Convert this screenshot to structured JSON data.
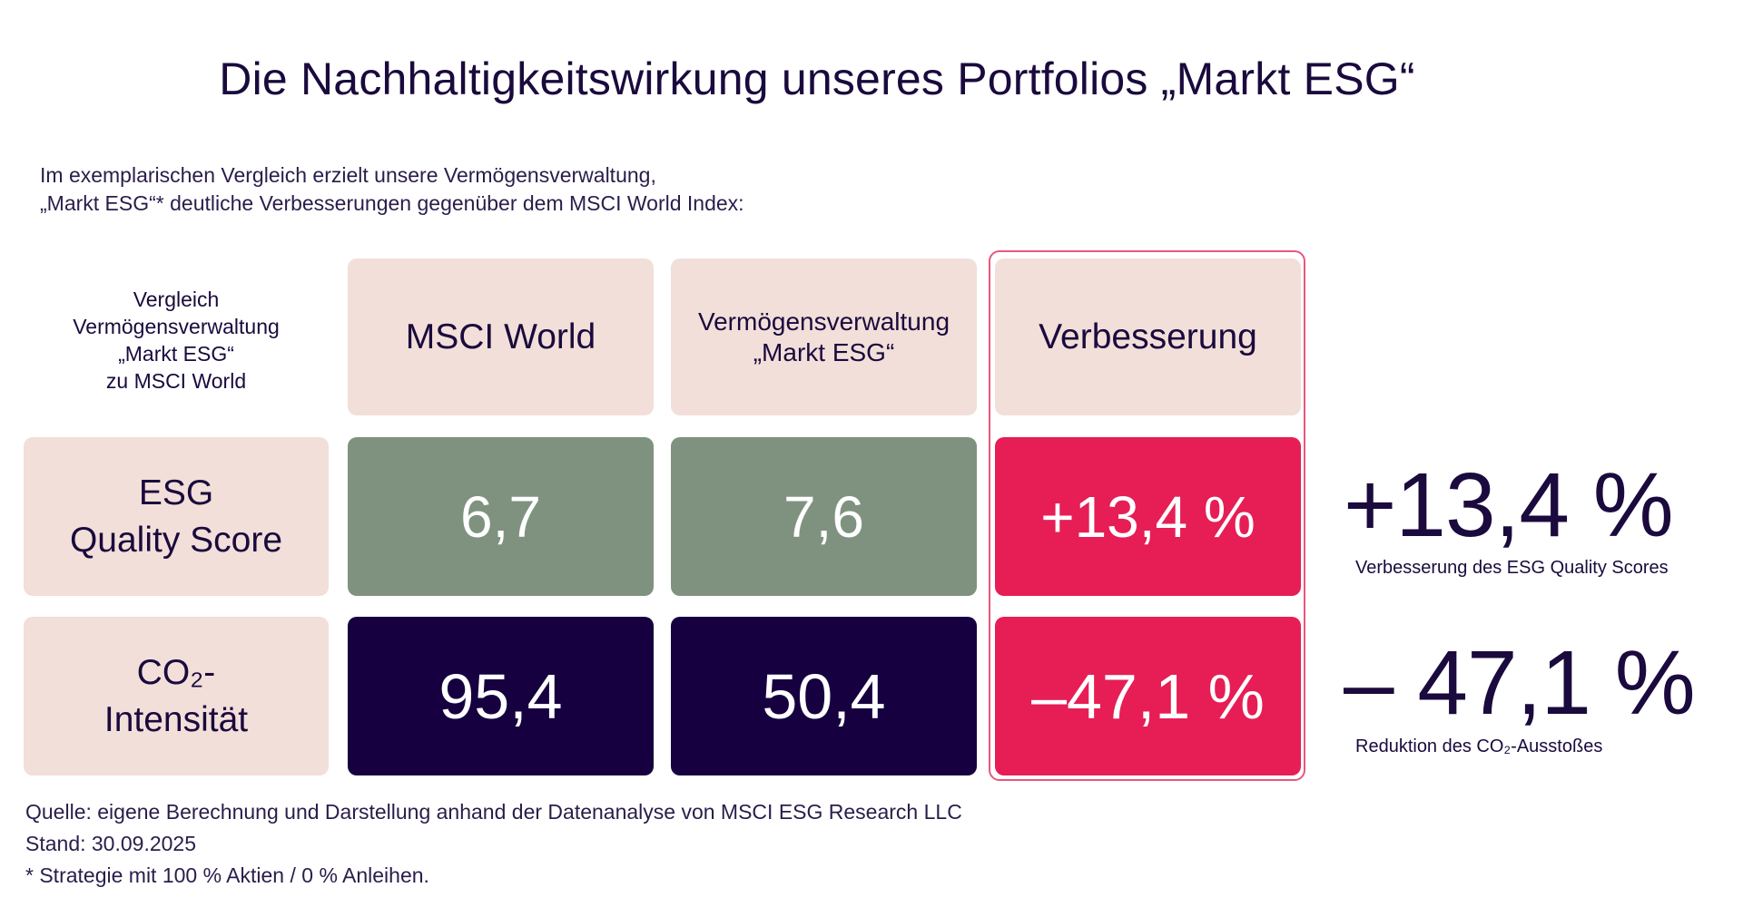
{
  "title": "Die Nachhaltigkeitswirkung unseres Portfolios „Markt ESG“",
  "intro": {
    "line1": "Im exemplarischen Vergleich erzielt unsere Vermögensverwaltung,",
    "line2": "„Markt ESG“* deutliche Verbesserungen gegenüber dem MSCI World Index:"
  },
  "table": {
    "corner_label": [
      "Vergleich",
      "Vermögensverwaltung",
      "„Markt ESG“",
      "zu MSCI  World"
    ],
    "headers": {
      "msci": "MSCI  World",
      "markt_line1": "Vermögensverwaltung",
      "markt_line2": "„Markt ESG“",
      "improvement": "Verbesserung"
    },
    "rows": [
      {
        "label_line1": "ESG",
        "label_line2": "Quality Score",
        "msci": "6,7",
        "markt": "7,6",
        "improvement": "+13,4 %"
      },
      {
        "label_line1": "CO₂-",
        "label_line2": "Intensität",
        "msci": "95,4",
        "markt": "50,4",
        "improvement": "–47,1 %"
      }
    ]
  },
  "stats": [
    {
      "value": "+13,4 %",
      "caption": "Verbesserung des ESG Quality Scores"
    },
    {
      "value": "– 47,1 %",
      "caption": "Reduktion des CO₂-Ausstoßes"
    }
  ],
  "footer": {
    "source": "Quelle: eigene Berechnung und Darstellung anhand der Datenanalyse von MSCI ESG Research LLC",
    "date": "Stand: 30.09.2025",
    "note": "* Strategie mit 100 % Aktien / 0 % Anleihen."
  },
  "colors": {
    "navy": "#160040",
    "pink": "#f2dfd9",
    "green": "#7f927f",
    "red": "#e61e55"
  }
}
